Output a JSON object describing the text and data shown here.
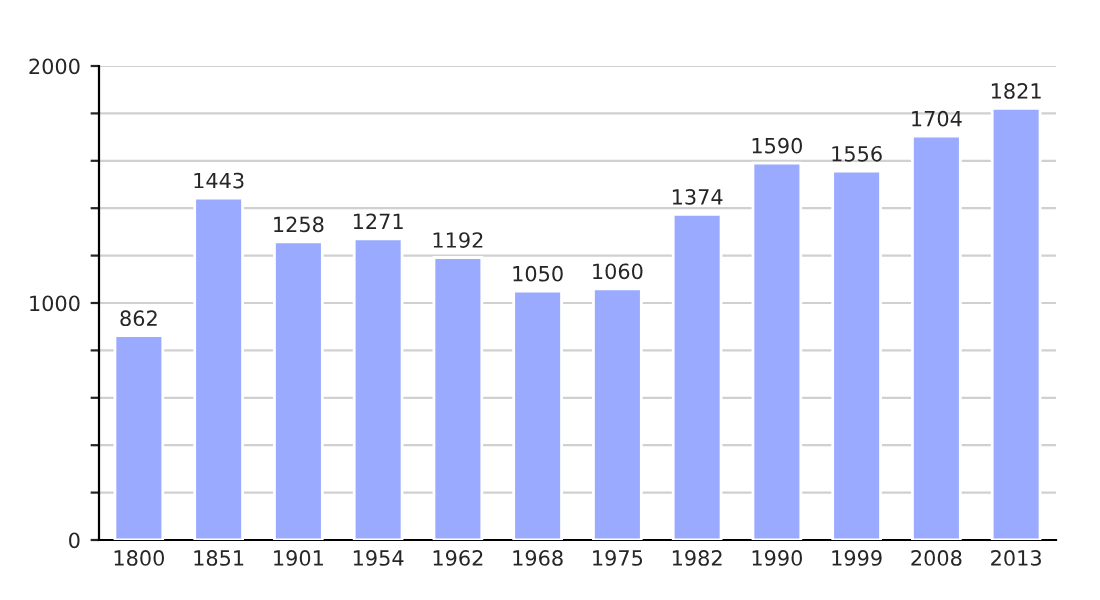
{
  "chart_data": {
    "type": "bar",
    "categories": [
      "1800",
      "1851",
      "1901",
      "1954",
      "1962",
      "1968",
      "1975",
      "1982",
      "1990",
      "1999",
      "2008",
      "2013"
    ],
    "values": [
      862,
      1443,
      1258,
      1271,
      1192,
      1050,
      1060,
      1374,
      1590,
      1556,
      1704,
      1821
    ],
    "color": "#99aaff",
    "ylim": [
      0,
      2000
    ],
    "yticks": [
      0,
      {
        "value": 200,
        "label": null
      },
      {
        "value": 400,
        "label": null
      },
      {
        "value": 600,
        "label": null
      },
      {
        "value": 800,
        "label": null
      },
      1000,
      {
        "value": 1200,
        "label": null
      },
      {
        "value": 1400,
        "label": null
      },
      {
        "value": 1600,
        "label": null
      },
      {
        "value": 1800,
        "label": null
      },
      2000
    ],
    "grid": "y",
    "data_labels": true
  }
}
